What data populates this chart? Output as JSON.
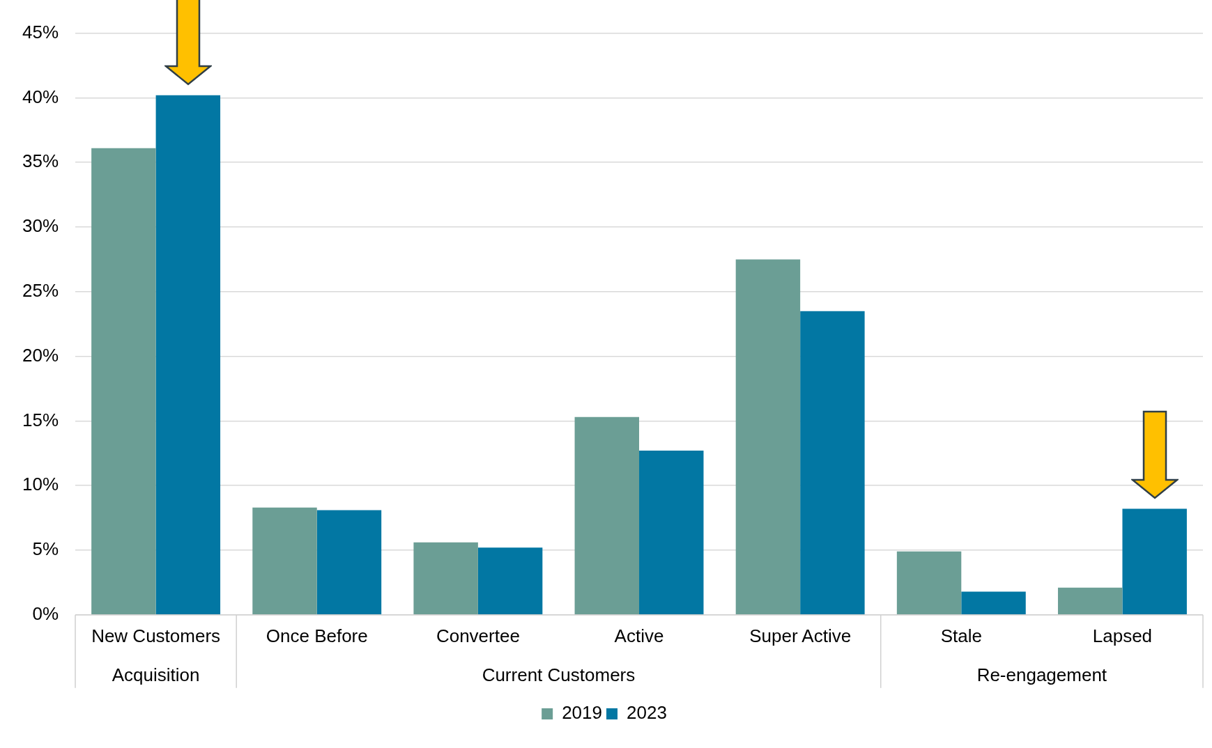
{
  "chart_data": {
    "type": "bar",
    "categories": [
      "New Customers",
      "Once Before",
      "Convertee",
      "Active",
      "Super Active",
      "Stale",
      "Lapsed"
    ],
    "series": [
      {
        "name": "2019",
        "color": "#6b9e95",
        "values": [
          36.1,
          8.3,
          5.6,
          15.3,
          27.5,
          4.9,
          2.1
        ]
      },
      {
        "name": "2023",
        "color": "#0277a3",
        "values": [
          40.2,
          8.1,
          5.2,
          12.7,
          23.5,
          1.8,
          8.2
        ]
      }
    ],
    "ylim": [
      0,
      45
    ],
    "yticks": [
      {
        "value": 0,
        "label": "0%"
      },
      {
        "value": 5,
        "label": "5%"
      },
      {
        "value": 10,
        "label": "10%"
      },
      {
        "value": 15,
        "label": "15%"
      },
      {
        "value": 20,
        "label": "20%"
      },
      {
        "value": 25,
        "label": "25%"
      },
      {
        "value": 30,
        "label": "30%"
      },
      {
        "value": 35,
        "label": "35%"
      },
      {
        "value": 40,
        "label": "40%"
      },
      {
        "value": 45,
        "label": "45%"
      }
    ],
    "grid": "y",
    "legend": "bottom",
    "annotations": [
      "Acquisition",
      "Current Customers",
      "Re-engagement"
    ]
  }
}
